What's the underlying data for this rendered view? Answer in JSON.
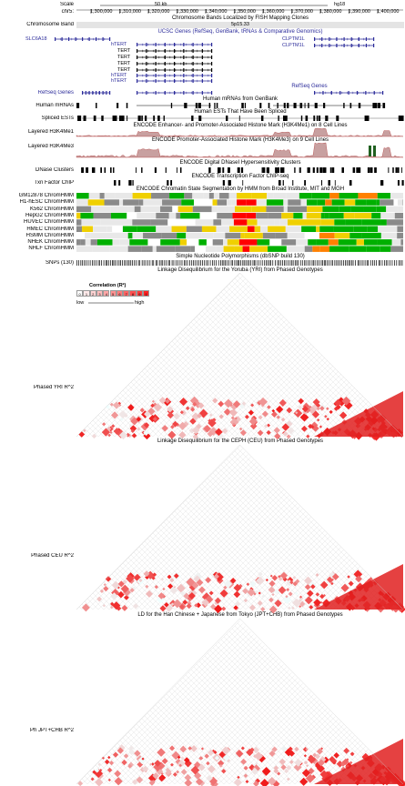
{
  "header": {
    "scale_label": "Scale",
    "scale_bar": "50 kb",
    "assembly": "hg18",
    "chrom_label": "chr5:",
    "positions": [
      "1,300,000",
      "1,310,000",
      "1,320,000",
      "1,330,000",
      "1,340,000",
      "1,350,000",
      "1,360,000",
      "1,370,000",
      "1,380,000",
      "1,390,000",
      "1,400,000"
    ]
  },
  "tracks": {
    "band_title": "Chromosome Bands Localized by FISH Mapping Clones",
    "band_label": "Chromosome Band",
    "band_value": "5p15.33",
    "ucsc_title": "UCSC Genes (RefSeq, GenBank, tRNAs & Comparative Genomics)",
    "genes": {
      "slc6a18": "SLC6A18",
      "htert1": "hTERT",
      "tert1": "TERT",
      "tert2": "TERT",
      "tert3": "TERT",
      "tert4": "TERT",
      "htert2": "hTERT",
      "htert3": "hTERT",
      "clptm1l_a": "CLPTM1L",
      "clptm1l_b": "CLPTM1L"
    },
    "refseq_title": "RefSeq Genes",
    "refseq_label": "RefSeq Genes",
    "mrna_title": "Human mRNAs from GenBank",
    "mrna_label": "Human mRNAs",
    "est_title": "Human ESTs That Have Been Spliced",
    "est_label": "Spliced ESTs",
    "h3k4me1_title": "ENCODE Enhancer- and Promoter-Associated Histone Mark (H3K4Me1) on 8 Cell Lines",
    "h3k4me1_label": "Layered H3K4Me1",
    "h3k4me3_title": "ENCODE Promoter-Associated Histone Mark (H3K4Me3) on 9 Cell Lines",
    "h3k4me3_label": "Layered H3K4Me3",
    "dnase_title": "ENCODE Digital DNaseI Hypersensitivity Clusters",
    "dnase_label": "DNase Clusters",
    "txn_title": "ENCODE Transcription Factor ChIP-seq",
    "txn_label": "Txn Factor ChIP",
    "chromhmm_title": "ENCODE Chromatin State Segmentation by HMM from Broad Institute, MIT and MGH",
    "chromhmm_labels": [
      "GM12878 ChromHMM",
      "H1-hESC ChromHMM",
      "K562 ChromHMM",
      "HepG2 ChromHMM",
      "HUVEC ChromHMM",
      "HMEC ChromHMM",
      "HSMM ChromHMM",
      "NHEK ChromHMM",
      "NHLF ChromHMM"
    ],
    "snp_title": "Simple Nucleotide Polymorphisms (dbSNP build 130)",
    "snp_label": "SNPs (130)",
    "ld_yri_title": "Linkage Disequilibrium for the Yoruba (YRI) from Phased Genotypes",
    "ld_yri_label": "Phased YRI R^2",
    "ld_ceu_title": "Linkage Disequilibrium for the CEPH (CEU) from Phased Genotypes",
    "ld_ceu_label": "Phased CEU R^2",
    "ld_jpt_title": "LD for the Han Chinese + Japanese from Tokyo (JPT+CHB) from Phased Genotypes",
    "ld_jpt_label": "Ph JPT+CHB R^2"
  },
  "legend": {
    "title": "Correlation",
    "unit": "(R²)",
    "ticks": [
      "0",
      "1",
      "2",
      "3",
      "4",
      "5",
      "6",
      "7",
      "8",
      "9",
      "1"
    ],
    "low": "low",
    "high": "high"
  },
  "colors": {
    "gene_blue": "#2b2b9a",
    "ld_red": "#e02020",
    "chrom_red": "#ff0000",
    "chrom_green": "#00b000",
    "chrom_yellow": "#f0d000",
    "chrom_gray": "#8a8a8a",
    "chrom_orange": "#ff8000"
  }
}
